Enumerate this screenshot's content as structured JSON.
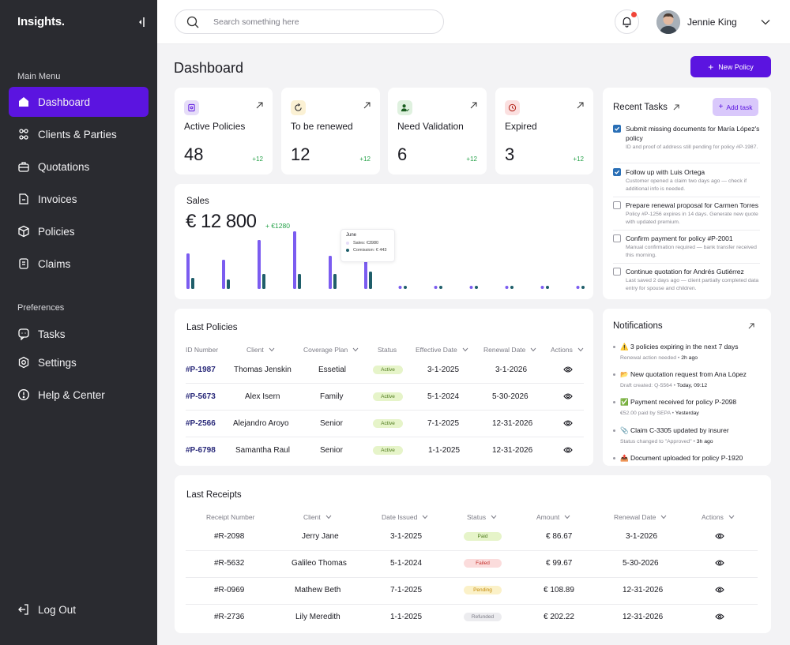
{
  "sidebar": {
    "brand": "Insights.",
    "main_menu_label": "Main Menu",
    "preferences_label": "Preferences",
    "main_items": [
      {
        "label": "Dashboard",
        "icon": "home-icon",
        "active": true
      },
      {
        "label": "Clients & Parties",
        "icon": "users-icon"
      },
      {
        "label": "Quotations",
        "icon": "briefcase-icon"
      },
      {
        "label": "Invoices",
        "icon": "file-icon"
      },
      {
        "label": "Policies",
        "icon": "cube-icon"
      },
      {
        "label": "Claims",
        "icon": "clipboard-icon"
      }
    ],
    "pref_items": [
      {
        "label": "Tasks",
        "icon": "chat-icon"
      },
      {
        "label": "Settings",
        "icon": "gear-icon"
      },
      {
        "label": "Help & Center",
        "icon": "alert-circle-icon"
      }
    ],
    "logout": "Log Out"
  },
  "header": {
    "search_placeholder": "Search something here",
    "user_name": "Jennie King"
  },
  "main": {
    "title": "Dashboard",
    "new_policy": "New Policy"
  },
  "stats": [
    {
      "label": "Active Policies",
      "value": "48",
      "delta": "+12",
      "icon": "document-icon",
      "color": "#e6ddf8"
    },
    {
      "label": "To be renewed",
      "value": "12",
      "delta": "+12",
      "icon": "refresh-icon",
      "color": "#fbf1d4"
    },
    {
      "label": "Need Validation",
      "value": "6",
      "delta": "+12",
      "icon": "user-check-icon",
      "color": "#dff1df"
    },
    {
      "label": "Expired",
      "value": "3",
      "delta": "+12",
      "icon": "clock-icon",
      "color": "#fbe0e0"
    }
  ],
  "sales": {
    "title": "Sales",
    "value": "€ 12 800",
    "delta": "+ €1280",
    "tooltip": {
      "title": "June",
      "sales": "Sales: €3980",
      "commission": "Comission: € 443"
    }
  },
  "chart_data": {
    "type": "bar",
    "series": [
      {
        "name": "Sales",
        "color": "#7b5cf0",
        "values": [
          45,
          37,
          62,
          73,
          42,
          35,
          0,
          0,
          0,
          0,
          0,
          0
        ]
      },
      {
        "name": "Comission",
        "color": "#1f5e6a",
        "values": [
          14,
          12,
          19,
          19,
          19,
          22,
          0,
          0,
          0,
          0,
          0,
          0
        ]
      }
    ]
  },
  "policies": {
    "title": "Last Policies",
    "headers": [
      "ID Number",
      "Client",
      "Coverage Plan",
      "Status",
      "Effective Date",
      "Renewal Date",
      "Actions"
    ],
    "rows": [
      {
        "id": "#P-1987",
        "client": "Thomas Jenskin",
        "plan": "Essetial",
        "status": "Active",
        "effective": "3-1-2025",
        "renewal": "3-1-2026"
      },
      {
        "id": "#P-5673",
        "client": "Alex Isern",
        "plan": "Family",
        "status": "Active",
        "effective": "5-1-2024",
        "renewal": "5-30-2026"
      },
      {
        "id": "#P-2566",
        "client": "Alejandro Aroyo",
        "plan": "Senior",
        "status": "Active",
        "effective": "7-1-2025",
        "renewal": "12-31-2026"
      },
      {
        "id": "#P-6798",
        "client": "Samantha Raul",
        "plan": "Senior",
        "status": "Active",
        "effective": "1-1-2025",
        "renewal": "12-31-2026"
      }
    ]
  },
  "receipts": {
    "title": "Last Receipts",
    "headers": [
      "Receipt Number",
      "Client",
      "Date Issued",
      "Status",
      "Amount",
      "Renewal Date",
      "Actions"
    ],
    "rows": [
      {
        "id": "#R-2098",
        "client": "Jerry Jane",
        "date": "3-1-2025",
        "status": "Paid",
        "amount": "€ 86.67",
        "renewal": "3-1-2026"
      },
      {
        "id": "#R-5632",
        "client": "Galileo Thomas",
        "date": "5-1-2024",
        "status": "Failed",
        "amount": "€ 99.67",
        "renewal": "5-30-2026"
      },
      {
        "id": "#R-0969",
        "client": "Mathew Beth",
        "date": "7-1-2025",
        "status": "Pending",
        "amount": "€ 108.89",
        "renewal": "12-31-2026"
      },
      {
        "id": "#R-2736",
        "client": "Lily Meredith",
        "date": "1-1-2025",
        "status": "Refunded",
        "amount": "€ 202.22",
        "renewal": "12-31-2026"
      }
    ]
  },
  "tasks": {
    "title": "Recent Tasks",
    "add_label": "Add task",
    "items": [
      {
        "checked": true,
        "title": "Submit missing documents for María López's policy",
        "desc": "ID and proof of address still pending for policy #P-1987."
      },
      {
        "checked": true,
        "title": "Follow up with Luis Ortega",
        "desc": "Customer opened a claim two days ago — check if additional info is needed."
      },
      {
        "checked": false,
        "title": "Prepare renewal proposal for Carmen Torres",
        "desc": "Policy #P-1256 expires in 14 days. Generate new quote with updated premium."
      },
      {
        "checked": false,
        "title": "Confirm payment for policy #P-2001",
        "desc": "Manual confirmation required — bank transfer received this morning."
      },
      {
        "checked": false,
        "title": "Continue quotation for Andrés Gutiérrez",
        "desc": "Last saved 2 days ago — client partially completed data entry for spouse and children."
      }
    ]
  },
  "notifications": {
    "title": "Notifications",
    "items": [
      {
        "text": "⚠️ 3 policies expiring in the next 7 days",
        "detail": "Renewal action needed",
        "time": "2h ago"
      },
      {
        "text": "📂 New quotation request from Ana López",
        "detail": "Draft created: Q-5564",
        "time": "Today, 09:12"
      },
      {
        "text": "✅ Payment received for policy P-2098",
        "detail": "€52.00 paid by SEPA",
        "time": "Yesterday"
      },
      {
        "text": "📎 Claim C-3305 updated by insurer",
        "detail": "Status changed to \"Approved\"",
        "time": "3h ago"
      },
      {
        "text": "📤 Document uploaded for policy P-1920",
        "detail": "",
        "time": ""
      }
    ]
  }
}
